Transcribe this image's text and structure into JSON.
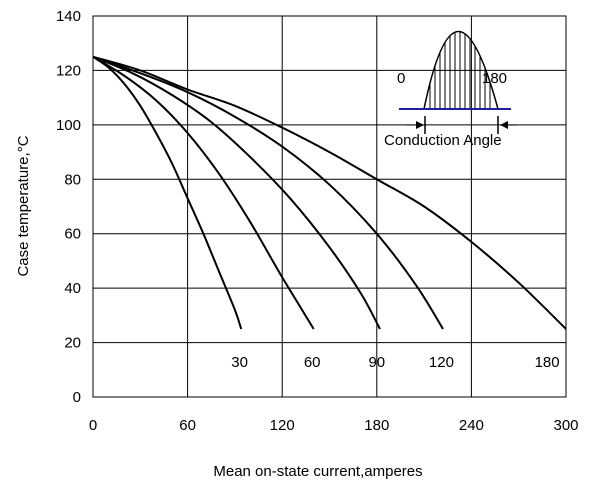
{
  "chart_data": {
    "type": "line",
    "xlabel": "Mean on-state current,amperes",
    "ylabel": "Case temperature,°C",
    "xlim": [
      0,
      300
    ],
    "ylim": [
      0,
      140
    ],
    "xticks": [
      0,
      60,
      120,
      180,
      240,
      300
    ],
    "yticks": [
      0,
      20,
      40,
      60,
      80,
      100,
      120,
      140
    ],
    "grid": true,
    "series": [
      {
        "name": "30",
        "label_x": 93,
        "x": [
          0,
          10,
          20,
          30,
          40,
          50,
          60,
          70,
          80,
          90,
          94
        ],
        "y": [
          125,
          121,
          115,
          107,
          97,
          86,
          73,
          60,
          46,
          32,
          25
        ]
      },
      {
        "name": "60",
        "label_x": 139,
        "x": [
          0,
          20,
          40,
          60,
          80,
          100,
          120,
          140
        ],
        "y": [
          125,
          118,
          109,
          97,
          82,
          64,
          44,
          25
        ]
      },
      {
        "name": "90",
        "label_x": 180,
        "x": [
          0,
          25,
          50,
          75,
          100,
          125,
          150,
          170,
          182
        ],
        "y": [
          125,
          119,
          111,
          101,
          88,
          73,
          55,
          38,
          25
        ]
      },
      {
        "name": "120",
        "label_x": 221,
        "x": [
          0,
          30,
          60,
          90,
          120,
          150,
          180,
          205,
          222
        ],
        "y": [
          125,
          119,
          112,
          103,
          92,
          78,
          60,
          41,
          25
        ]
      },
      {
        "name": "180",
        "label_x": 288,
        "x": [
          0,
          30,
          60,
          90,
          120,
          150,
          180,
          210,
          240,
          270,
          300
        ],
        "y": [
          125,
          120,
          113,
          107,
          99,
          90,
          80,
          70,
          57,
          42,
          25
        ]
      }
    ],
    "inset": {
      "start_label": "0",
      "end_label": "180",
      "caption": "Conduction Angle"
    }
  }
}
